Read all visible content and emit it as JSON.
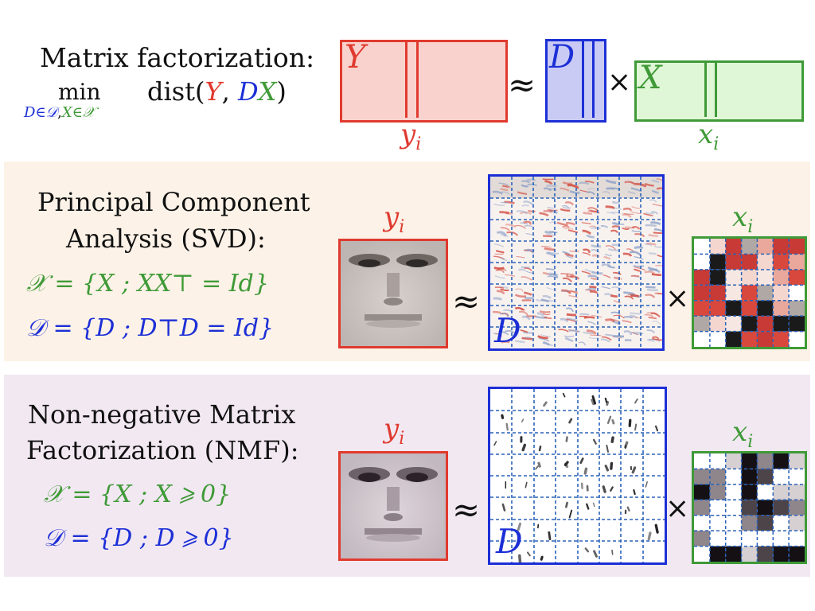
{
  "colors": {
    "red": "#e03a2f",
    "blue": "#1c2fd6",
    "green": "#3f9a37",
    "pca_band": "#fcf2e7",
    "nmf_band": "#f2e8f2"
  },
  "top": {
    "title": "Matrix factorization:",
    "min": "min",
    "min_sub_D": "D∈𝒟",
    "min_sub_comma": ",",
    "min_sub_X": "X∈𝒳",
    "dist_open": "dist(",
    "dist_Y": "Y",
    "dist_comma": ", ",
    "dist_D": "D",
    "dist_X": "X",
    "dist_close": ")",
    "Y_label": "Y",
    "D_label": "D",
    "X_label": "X",
    "y_col": "y",
    "y_sub": "i",
    "x_col": "x",
    "x_sub": "i",
    "approx": "≈",
    "times": "×"
  },
  "pca": {
    "line1": "Principal Component",
    "line2": "Analysis (SVD):",
    "X_constraint": "𝒳 = {X ; XX⊤ = Id}",
    "D_constraint": "𝒟 = {D ; D⊤D = Id}",
    "y_label": "y",
    "y_sub": "i",
    "x_label": "x",
    "x_sub": "i",
    "D_label": "D",
    "approx": "≈",
    "times": "×"
  },
  "nmf": {
    "line1": "Non-negative Matrix",
    "line2": "Factorization (NMF):",
    "X_constraint": "𝒳 = {X ; X ⩾ 0}",
    "D_constraint": "𝒟 = {D ; D ⩾ 0}",
    "y_label": "y",
    "y_sub": "i",
    "x_label": "x",
    "x_sub": "i",
    "D_label": "D",
    "approx": "≈",
    "times": "×"
  }
}
